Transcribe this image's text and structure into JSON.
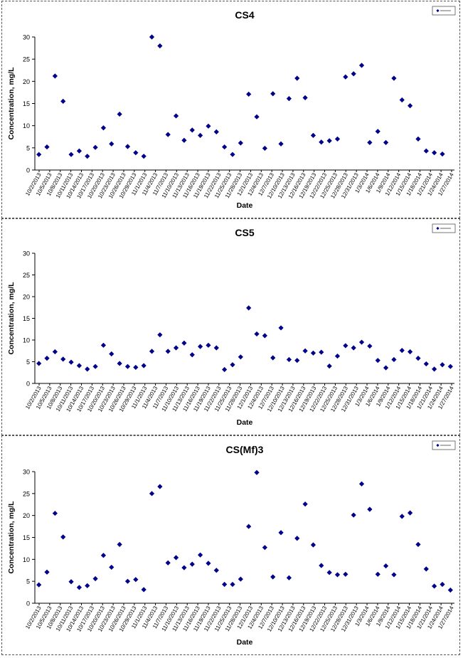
{
  "chart_data": [
    {
      "type": "scatter",
      "title": "CS4",
      "xlabel": "Date",
      "ylabel": "Concentration, mg/L",
      "ylim": [
        0,
        30
      ],
      "yticks": [
        0,
        5,
        10,
        15,
        20,
        25,
        30
      ],
      "legend": "top-right",
      "marker_color": "#00008B",
      "xtick_labels": [
        "10/2/2013",
        "10/5/2013",
        "10/8/2013",
        "10/11/2013",
        "10/14/2013",
        "10/17/2013",
        "10/20/2013",
        "10/23/2013",
        "10/26/2013",
        "10/29/2013",
        "11/1/2013",
        "11/4/2013",
        "11/7/2013",
        "11/10/2013",
        "11/13/2013",
        "11/16/2013",
        "11/19/2013",
        "11/22/2013",
        "11/25/2013",
        "11/28/2013",
        "12/1/2013",
        "12/4/2013",
        "12/7/2013",
        "12/10/2013",
        "12/13/2013",
        "12/16/2013",
        "12/19/2013",
        "12/22/2013",
        "12/25/2013",
        "12/28/2013",
        "12/31/2013",
        "1/3/2014",
        "1/6/2014",
        "1/9/2014",
        "1/12/2014",
        "1/15/2014",
        "1/18/2014",
        "1/21/2014",
        "1/24/2014",
        "1/27/2014"
      ],
      "points": [
        [
          0,
          3.5
        ],
        [
          1,
          5.2
        ],
        [
          2,
          21.2
        ],
        [
          3,
          15.5
        ],
        [
          4,
          3.5
        ],
        [
          5,
          4.3
        ],
        [
          6,
          3.1
        ],
        [
          7,
          5.1
        ],
        [
          8,
          9.5
        ],
        [
          9,
          5.9
        ],
        [
          10,
          12.6
        ],
        [
          11,
          5.3
        ],
        [
          12,
          3.9
        ],
        [
          13,
          3.1
        ],
        [
          14,
          30
        ],
        [
          15,
          28
        ],
        [
          16,
          8.0
        ],
        [
          17,
          12.2
        ],
        [
          18,
          6.7
        ],
        [
          19,
          9.0
        ],
        [
          20,
          7.8
        ],
        [
          21,
          9.9
        ],
        [
          22,
          8.6
        ],
        [
          23,
          5.2
        ],
        [
          24,
          3.5
        ],
        [
          25,
          6.1
        ],
        [
          26,
          17.1
        ],
        [
          27,
          12.0
        ],
        [
          28,
          4.9
        ],
        [
          29,
          17.2
        ],
        [
          30,
          5.9
        ],
        [
          31,
          16.1
        ],
        [
          32,
          20.7
        ],
        [
          33,
          16.3
        ],
        [
          34,
          7.8
        ],
        [
          35,
          6.3
        ],
        [
          36,
          6.6
        ],
        [
          37,
          7.0
        ],
        [
          38,
          21.0
        ],
        [
          39,
          21.7
        ],
        [
          40,
          23.6
        ],
        [
          41,
          6.2
        ],
        [
          42,
          8.7
        ],
        [
          43,
          6.2
        ],
        [
          44,
          20.7
        ],
        [
          45,
          15.8
        ],
        [
          46,
          14.5
        ],
        [
          47,
          7.0
        ],
        [
          48,
          4.3
        ],
        [
          49,
          3.9
        ],
        [
          50,
          3.6
        ]
      ]
    },
    {
      "type": "scatter",
      "title": "CS5",
      "xlabel": "Date",
      "ylabel": "Concentration, mg/L",
      "ylim": [
        0,
        30
      ],
      "yticks": [
        0,
        5,
        10,
        15,
        20,
        25,
        30
      ],
      "legend": "top-right",
      "marker_color": "#00008B",
      "xtick_labels": [
        "10/2/2013",
        "10/5/2013",
        "10/8/2013",
        "10/11/2013",
        "10/14/2013",
        "10/17/2013",
        "10/20/2013",
        "10/23/2013",
        "10/26/2013",
        "10/29/2013",
        "11/1/2013",
        "11/4/2013",
        "11/7/2013",
        "11/10/2013",
        "11/13/2013",
        "11/16/2013",
        "11/19/2013",
        "11/22/2013",
        "11/25/2013",
        "11/28/2013",
        "12/1/2013",
        "12/4/2013",
        "12/7/2013",
        "12/10/2013",
        "12/13/2013",
        "12/16/2013",
        "12/19/2013",
        "12/22/2013",
        "12/25/2013",
        "12/28/2013",
        "12/31/2013",
        "1/3/2014",
        "1/6/2014",
        "1/9/2014",
        "1/12/2014",
        "1/15/2014",
        "1/18/2014",
        "1/21/2014",
        "1/24/2014",
        "1/27/2014"
      ],
      "points": [
        [
          0,
          4.6
        ],
        [
          1,
          5.8
        ],
        [
          2,
          7.3
        ],
        [
          3,
          5.6
        ],
        [
          4,
          4.9
        ],
        [
          5,
          4.1
        ],
        [
          6,
          3.3
        ],
        [
          7,
          3.9
        ],
        [
          8,
          8.8
        ],
        [
          9,
          6.8
        ],
        [
          10,
          4.6
        ],
        [
          11,
          3.9
        ],
        [
          12,
          3.7
        ],
        [
          13,
          4.1
        ],
        [
          14,
          7.4
        ],
        [
          15,
          11.2
        ],
        [
          16,
          7.4
        ],
        [
          17,
          8.2
        ],
        [
          18,
          9.3
        ],
        [
          19,
          6.6
        ],
        [
          20,
          8.5
        ],
        [
          21,
          8.8
        ],
        [
          22,
          8.2
        ],
        [
          23,
          3.2
        ],
        [
          24,
          4.3
        ],
        [
          25,
          6.1
        ],
        [
          26,
          17.4
        ],
        [
          27,
          11.4
        ],
        [
          28,
          11.0
        ],
        [
          29,
          5.9
        ],
        [
          30,
          12.8
        ],
        [
          31,
          5.5
        ],
        [
          32,
          5.3
        ],
        [
          33,
          7.5
        ],
        [
          34,
          7.0
        ],
        [
          35,
          7.2
        ],
        [
          36,
          4.0
        ],
        [
          37,
          6.3
        ],
        [
          38,
          8.7
        ],
        [
          39,
          8.2
        ],
        [
          40,
          9.5
        ],
        [
          41,
          8.6
        ],
        [
          42,
          5.3
        ],
        [
          43,
          3.6
        ],
        [
          44,
          5.5
        ],
        [
          45,
          7.6
        ],
        [
          46,
          7.3
        ],
        [
          47,
          5.8
        ],
        [
          48,
          4.5
        ],
        [
          49,
          3.3
        ],
        [
          50,
          4.3
        ],
        [
          51,
          3.9
        ]
      ]
    },
    {
      "type": "scatter",
      "title": "CS(Mf)3",
      "xlabel": "Date",
      "ylabel": "Concentration, mg/L",
      "ylim": [
        0,
        30
      ],
      "yticks": [
        0,
        5,
        10,
        15,
        20,
        25,
        30
      ],
      "legend": "top-right",
      "marker_color": "#00008B",
      "xtick_labels": [
        "10/2/2013",
        "10/5/2013",
        "10/8/2013",
        "10/11/2013",
        "10/14/2013",
        "10/17/2013",
        "10/20/2013",
        "10/23/2013",
        "10/26/2013",
        "10/29/2013",
        "11/1/2013",
        "11/4/2013",
        "11/7/2013",
        "11/10/2013",
        "11/13/2013",
        "11/16/2013",
        "11/19/2013",
        "11/22/2013",
        "11/25/2013",
        "11/28/2013",
        "12/1/2013",
        "12/4/2013",
        "12/7/2013",
        "12/10/2013",
        "12/13/2013",
        "12/16/2013",
        "12/19/2013",
        "12/22/2013",
        "12/25/2013",
        "12/28/2013",
        "12/31/2013",
        "1/3/2014",
        "1/6/2014",
        "1/9/2014",
        "1/12/2014",
        "1/15/2014",
        "1/18/2014",
        "1/21/2014",
        "1/24/2014",
        "1/27/2014"
      ],
      "points": [
        [
          0,
          4.2
        ],
        [
          1,
          7.1
        ],
        [
          2,
          20.5
        ],
        [
          3,
          15.1
        ],
        [
          4,
          4.9
        ],
        [
          5,
          3.6
        ],
        [
          6,
          4.0
        ],
        [
          7,
          5.6
        ],
        [
          8,
          10.9
        ],
        [
          9,
          8.2
        ],
        [
          10,
          13.4
        ],
        [
          11,
          5.0
        ],
        [
          12,
          5.4
        ],
        [
          13,
          3.1
        ],
        [
          14,
          25.0
        ],
        [
          15,
          26.6
        ],
        [
          16,
          9.2
        ],
        [
          17,
          10.4
        ],
        [
          18,
          8.1
        ],
        [
          19,
          8.9
        ],
        [
          20,
          11.0
        ],
        [
          21,
          9.1
        ],
        [
          22,
          7.5
        ],
        [
          23,
          4.3
        ],
        [
          24,
          4.3
        ],
        [
          25,
          5.5
        ],
        [
          26,
          17.5
        ],
        [
          27,
          29.8
        ],
        [
          28,
          12.7
        ],
        [
          29,
          6.0
        ],
        [
          30,
          16.1
        ],
        [
          31,
          5.8
        ],
        [
          32,
          14.8
        ],
        [
          33,
          22.6
        ],
        [
          34,
          13.3
        ],
        [
          35,
          8.6
        ],
        [
          36,
          7.0
        ],
        [
          37,
          6.5
        ],
        [
          38,
          6.6
        ],
        [
          39,
          20.1
        ],
        [
          40,
          27.2
        ],
        [
          41,
          21.4
        ],
        [
          42,
          6.6
        ],
        [
          43,
          8.5
        ],
        [
          44,
          6.5
        ],
        [
          45,
          19.8
        ],
        [
          46,
          20.6
        ],
        [
          47,
          13.4
        ],
        [
          48,
          7.8
        ],
        [
          49,
          3.9
        ],
        [
          50,
          4.3
        ],
        [
          51,
          3.0
        ]
      ]
    }
  ]
}
